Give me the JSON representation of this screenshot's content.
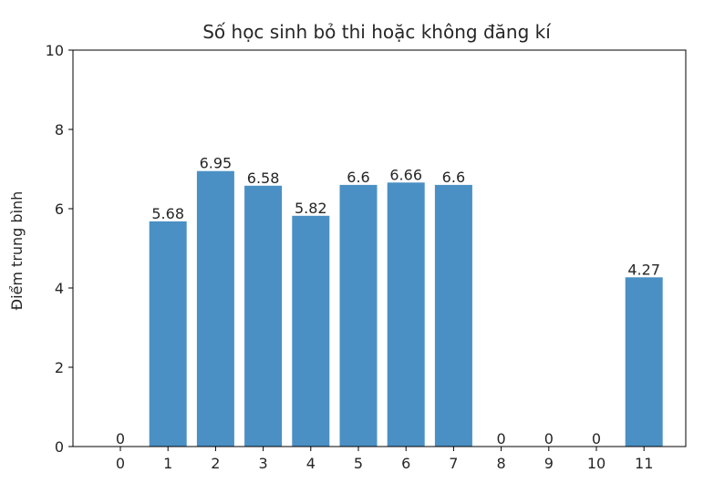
{
  "chart_data": {
    "type": "bar",
    "title": "Số học sinh bỏ thi hoặc không đăng kí",
    "xlabel": "",
    "ylabel": "Điểm trung bình",
    "categories": [
      "0",
      "1",
      "2",
      "3",
      "4",
      "5",
      "6",
      "7",
      "8",
      "9",
      "10",
      "11"
    ],
    "values": [
      0,
      5.68,
      6.95,
      6.58,
      5.82,
      6.6,
      6.66,
      6.6,
      0,
      0,
      0,
      4.27
    ],
    "value_labels": [
      "0",
      "5.68",
      "6.95",
      "6.58",
      "5.82",
      "6.6",
      "6.66",
      "6.6",
      "0",
      "0",
      "0",
      "4.27"
    ],
    "ylim": [
      0,
      10
    ],
    "yticks": [
      0,
      2,
      4,
      6,
      8,
      10
    ],
    "grid": false,
    "legend": "none",
    "bar_color": "#4a90c4"
  }
}
